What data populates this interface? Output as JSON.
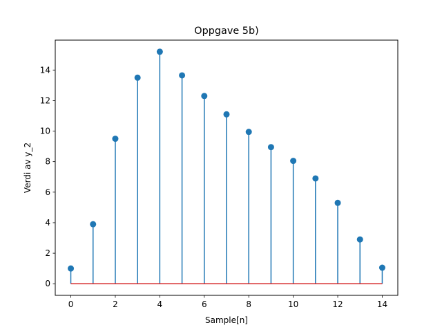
{
  "chart_data": {
    "type": "stem",
    "title": "Oppgave 5b)",
    "xlabel": "Sample[n]",
    "ylabel": "Verdi av y_2",
    "x": [
      0,
      1,
      2,
      3,
      4,
      5,
      6,
      7,
      8,
      9,
      10,
      11,
      12,
      13,
      14
    ],
    "values": [
      1.0,
      3.9,
      9.5,
      13.5,
      15.2,
      13.65,
      12.3,
      11.1,
      9.95,
      8.95,
      8.05,
      6.9,
      5.3,
      2.9,
      1.05
    ],
    "xlim": [
      -0.7,
      14.7
    ],
    "ylim": [
      -0.76,
      15.96
    ],
    "xticks": [
      0,
      2,
      4,
      6,
      8,
      10,
      12,
      14
    ],
    "xtick_labels": [
      "0",
      "2",
      "4",
      "6",
      "8",
      "10",
      "12",
      "14"
    ],
    "yticks": [
      0,
      2,
      4,
      6,
      8,
      10,
      12,
      14
    ],
    "ytick_labels": [
      "0",
      "2",
      "4",
      "6",
      "8",
      "10",
      "12",
      "14"
    ],
    "baseline": 0,
    "grid": false,
    "legend": "none",
    "colors": {
      "stem": "#1f77b4",
      "marker": "#1f77b4",
      "baseline": "#d62728",
      "axes": "#000000"
    }
  }
}
